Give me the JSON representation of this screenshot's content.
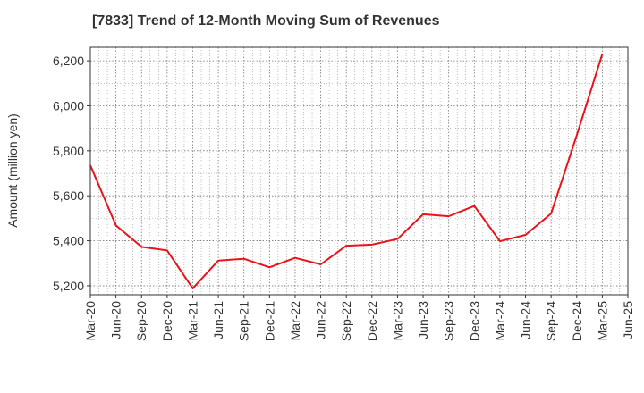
{
  "chart_data": {
    "type": "line",
    "title": "[7833]  Trend of 12-Month Moving Sum of Revenues",
    "xlabel": "",
    "ylabel": "Amount (million yen)",
    "x": [
      "Mar-20",
      "Jun-20",
      "Sep-20",
      "Dec-20",
      "Mar-21",
      "Jun-21",
      "Sep-21",
      "Dec-21",
      "Mar-22",
      "Jun-22",
      "Sep-22",
      "Dec-22",
      "Mar-23",
      "Jun-23",
      "Sep-23",
      "Dec-23",
      "Mar-24",
      "Jun-24",
      "Sep-24",
      "Dec-24",
      "Mar-25",
      "Jun-25"
    ],
    "ylim": [
      5160,
      6260
    ],
    "yticks": [
      5200,
      5400,
      5600,
      5800,
      6000,
      6200
    ],
    "ytick_labels": [
      "5,200",
      "5,400",
      "5,600",
      "5,800",
      "6,000",
      "6,200"
    ],
    "grid": true,
    "series": [
      {
        "color": "#e8141a",
        "values": [
          5735,
          5468,
          5373,
          5357,
          5188,
          5312,
          5320,
          5282,
          5324,
          5295,
          5378,
          5383,
          5408,
          5518,
          5509,
          5555,
          5398,
          5426,
          5521,
          5868,
          6230,
          null
        ]
      }
    ]
  }
}
